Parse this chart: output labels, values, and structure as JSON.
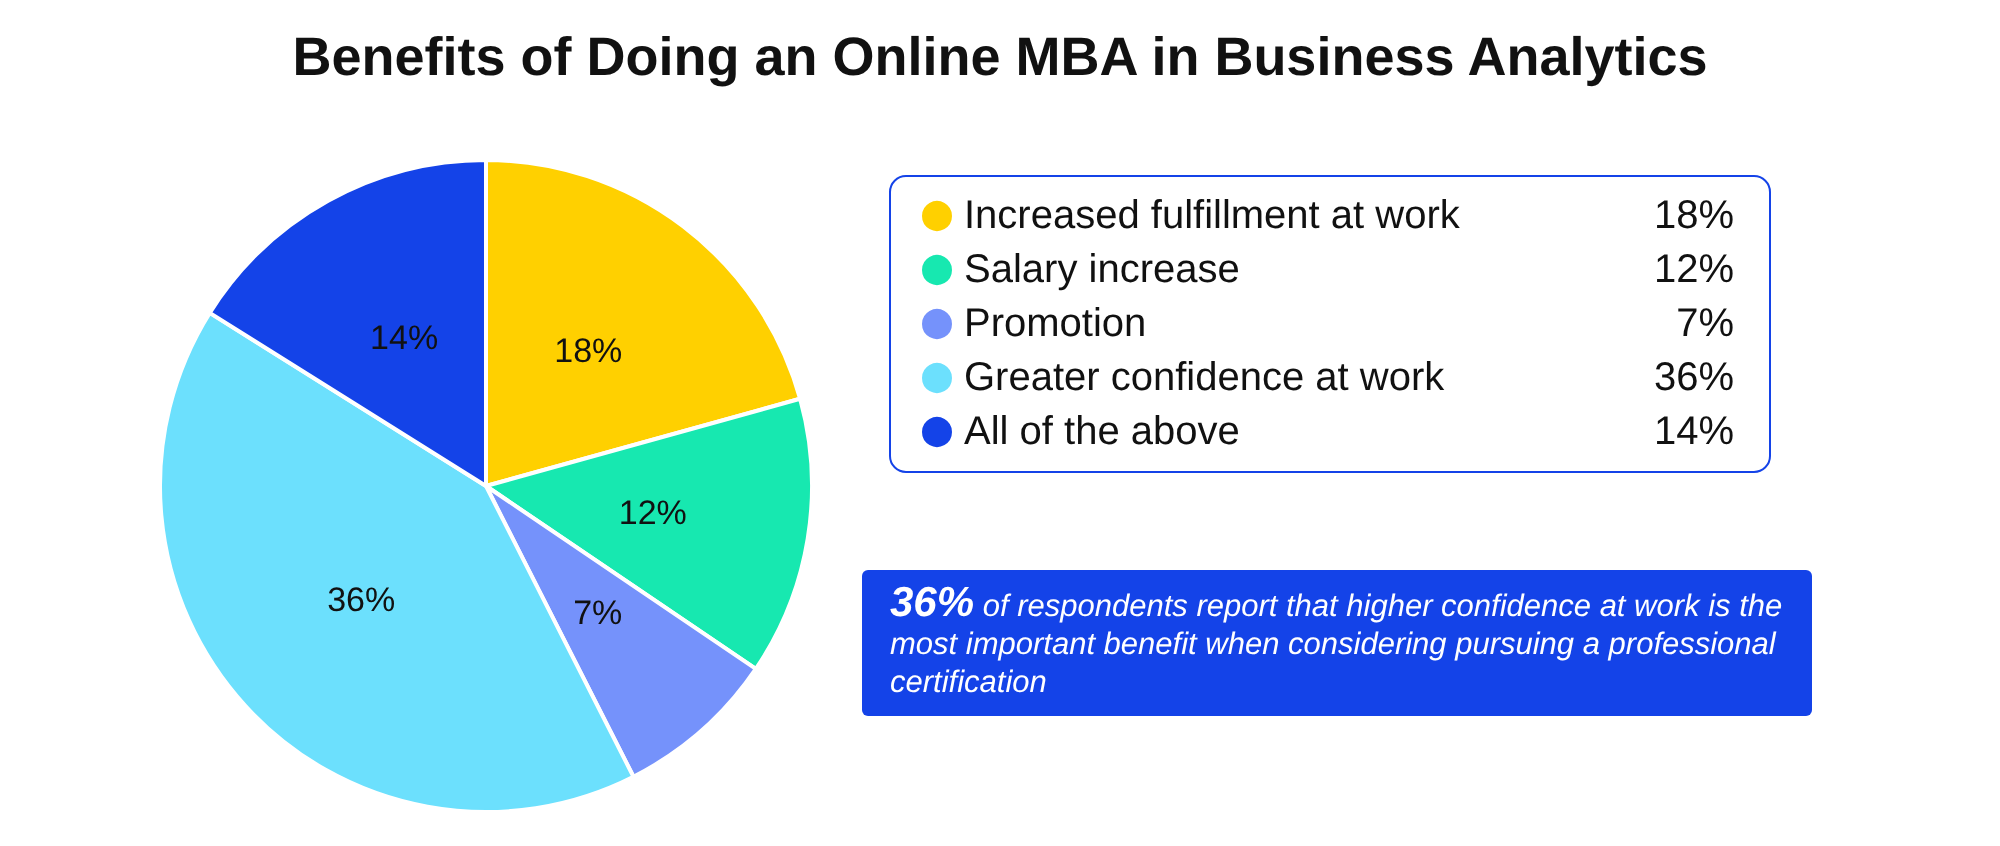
{
  "chart_data": {
    "type": "pie",
    "title": "Benefits of Doing an Online MBA in Business Analytics",
    "categories": [
      "Increased fulfillment at work",
      "Salary increase",
      "Promotion",
      "Greater confidence at work",
      "All of the above"
    ],
    "values": [
      18,
      12,
      7,
      36,
      14
    ],
    "colors": [
      "#ffd000",
      "#17e8b0",
      "#7592fb",
      "#6ce0fd",
      "#1443e8"
    ],
    "value_labels": [
      "18%",
      "12%",
      "7%",
      "36%",
      "14%"
    ],
    "legend": "right",
    "annotations": [
      "36% of respondents report that higher confidence at work is the most important benefit when considering pursuing a professional certification"
    ]
  }
}
